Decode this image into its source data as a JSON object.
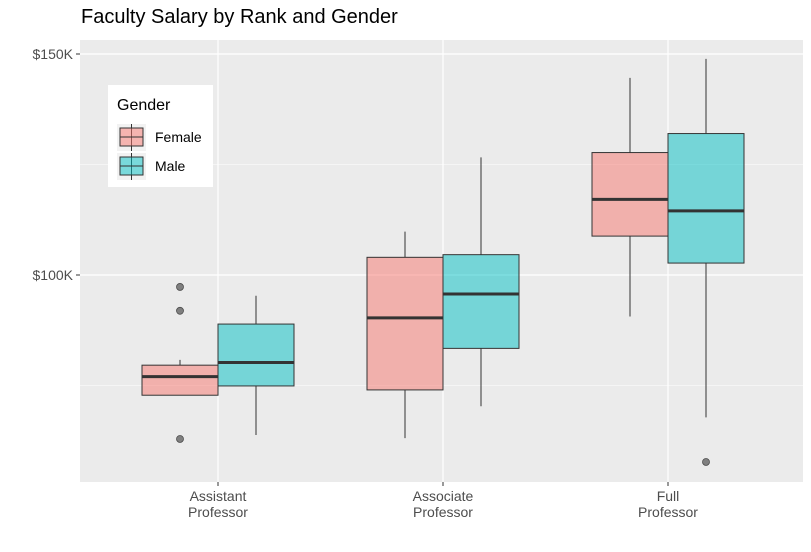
{
  "chart_data": {
    "type": "boxplot",
    "title": "Faculty Salary by Rank and Gender",
    "xlabel": "",
    "ylabel": "",
    "categories": [
      "Assistant Professor",
      "Associate Professor",
      "Full Professor"
    ],
    "category_lines": [
      [
        "Assistant",
        "Professor"
      ],
      [
        "Associate",
        "Professor"
      ],
      [
        "Full",
        "Professor"
      ]
    ],
    "y_ticks": [
      {
        "value": 100000,
        "label": "$100K"
      },
      {
        "value": 150000,
        "label": "$150K"
      }
    ],
    "ylim": [
      53000,
      155000
    ],
    "grid": true,
    "legend": {
      "title": "Gender",
      "position": "top-left-inside"
    },
    "series": [
      {
        "name": "Female",
        "color": "#F8766D",
        "boxes": [
          {
            "min": 72800,
            "q1": 72800,
            "median": 77000,
            "q3": 79600,
            "max": 80800,
            "outliers": [
              97300,
              91900,
              62900
            ]
          },
          {
            "min": 63100,
            "q1": 74000,
            "median": 90300,
            "q3": 104000,
            "max": 109800,
            "outliers": []
          },
          {
            "min": 90600,
            "q1": 108800,
            "median": 117100,
            "q3": 127700,
            "max": 144600,
            "outliers": []
          }
        ]
      },
      {
        "name": "Male",
        "color": "#00BFC4",
        "boxes": [
          {
            "min": 63800,
            "q1": 74900,
            "median": 80200,
            "q3": 88900,
            "max": 95300,
            "outliers": []
          },
          {
            "min": 70300,
            "q1": 83400,
            "median": 95700,
            "q3": 104600,
            "max": 126600,
            "outliers": []
          },
          {
            "min": 67800,
            "q1": 102700,
            "median": 114500,
            "q3": 132000,
            "max": 148900,
            "outliers": [
              57700
            ]
          }
        ]
      }
    ]
  }
}
